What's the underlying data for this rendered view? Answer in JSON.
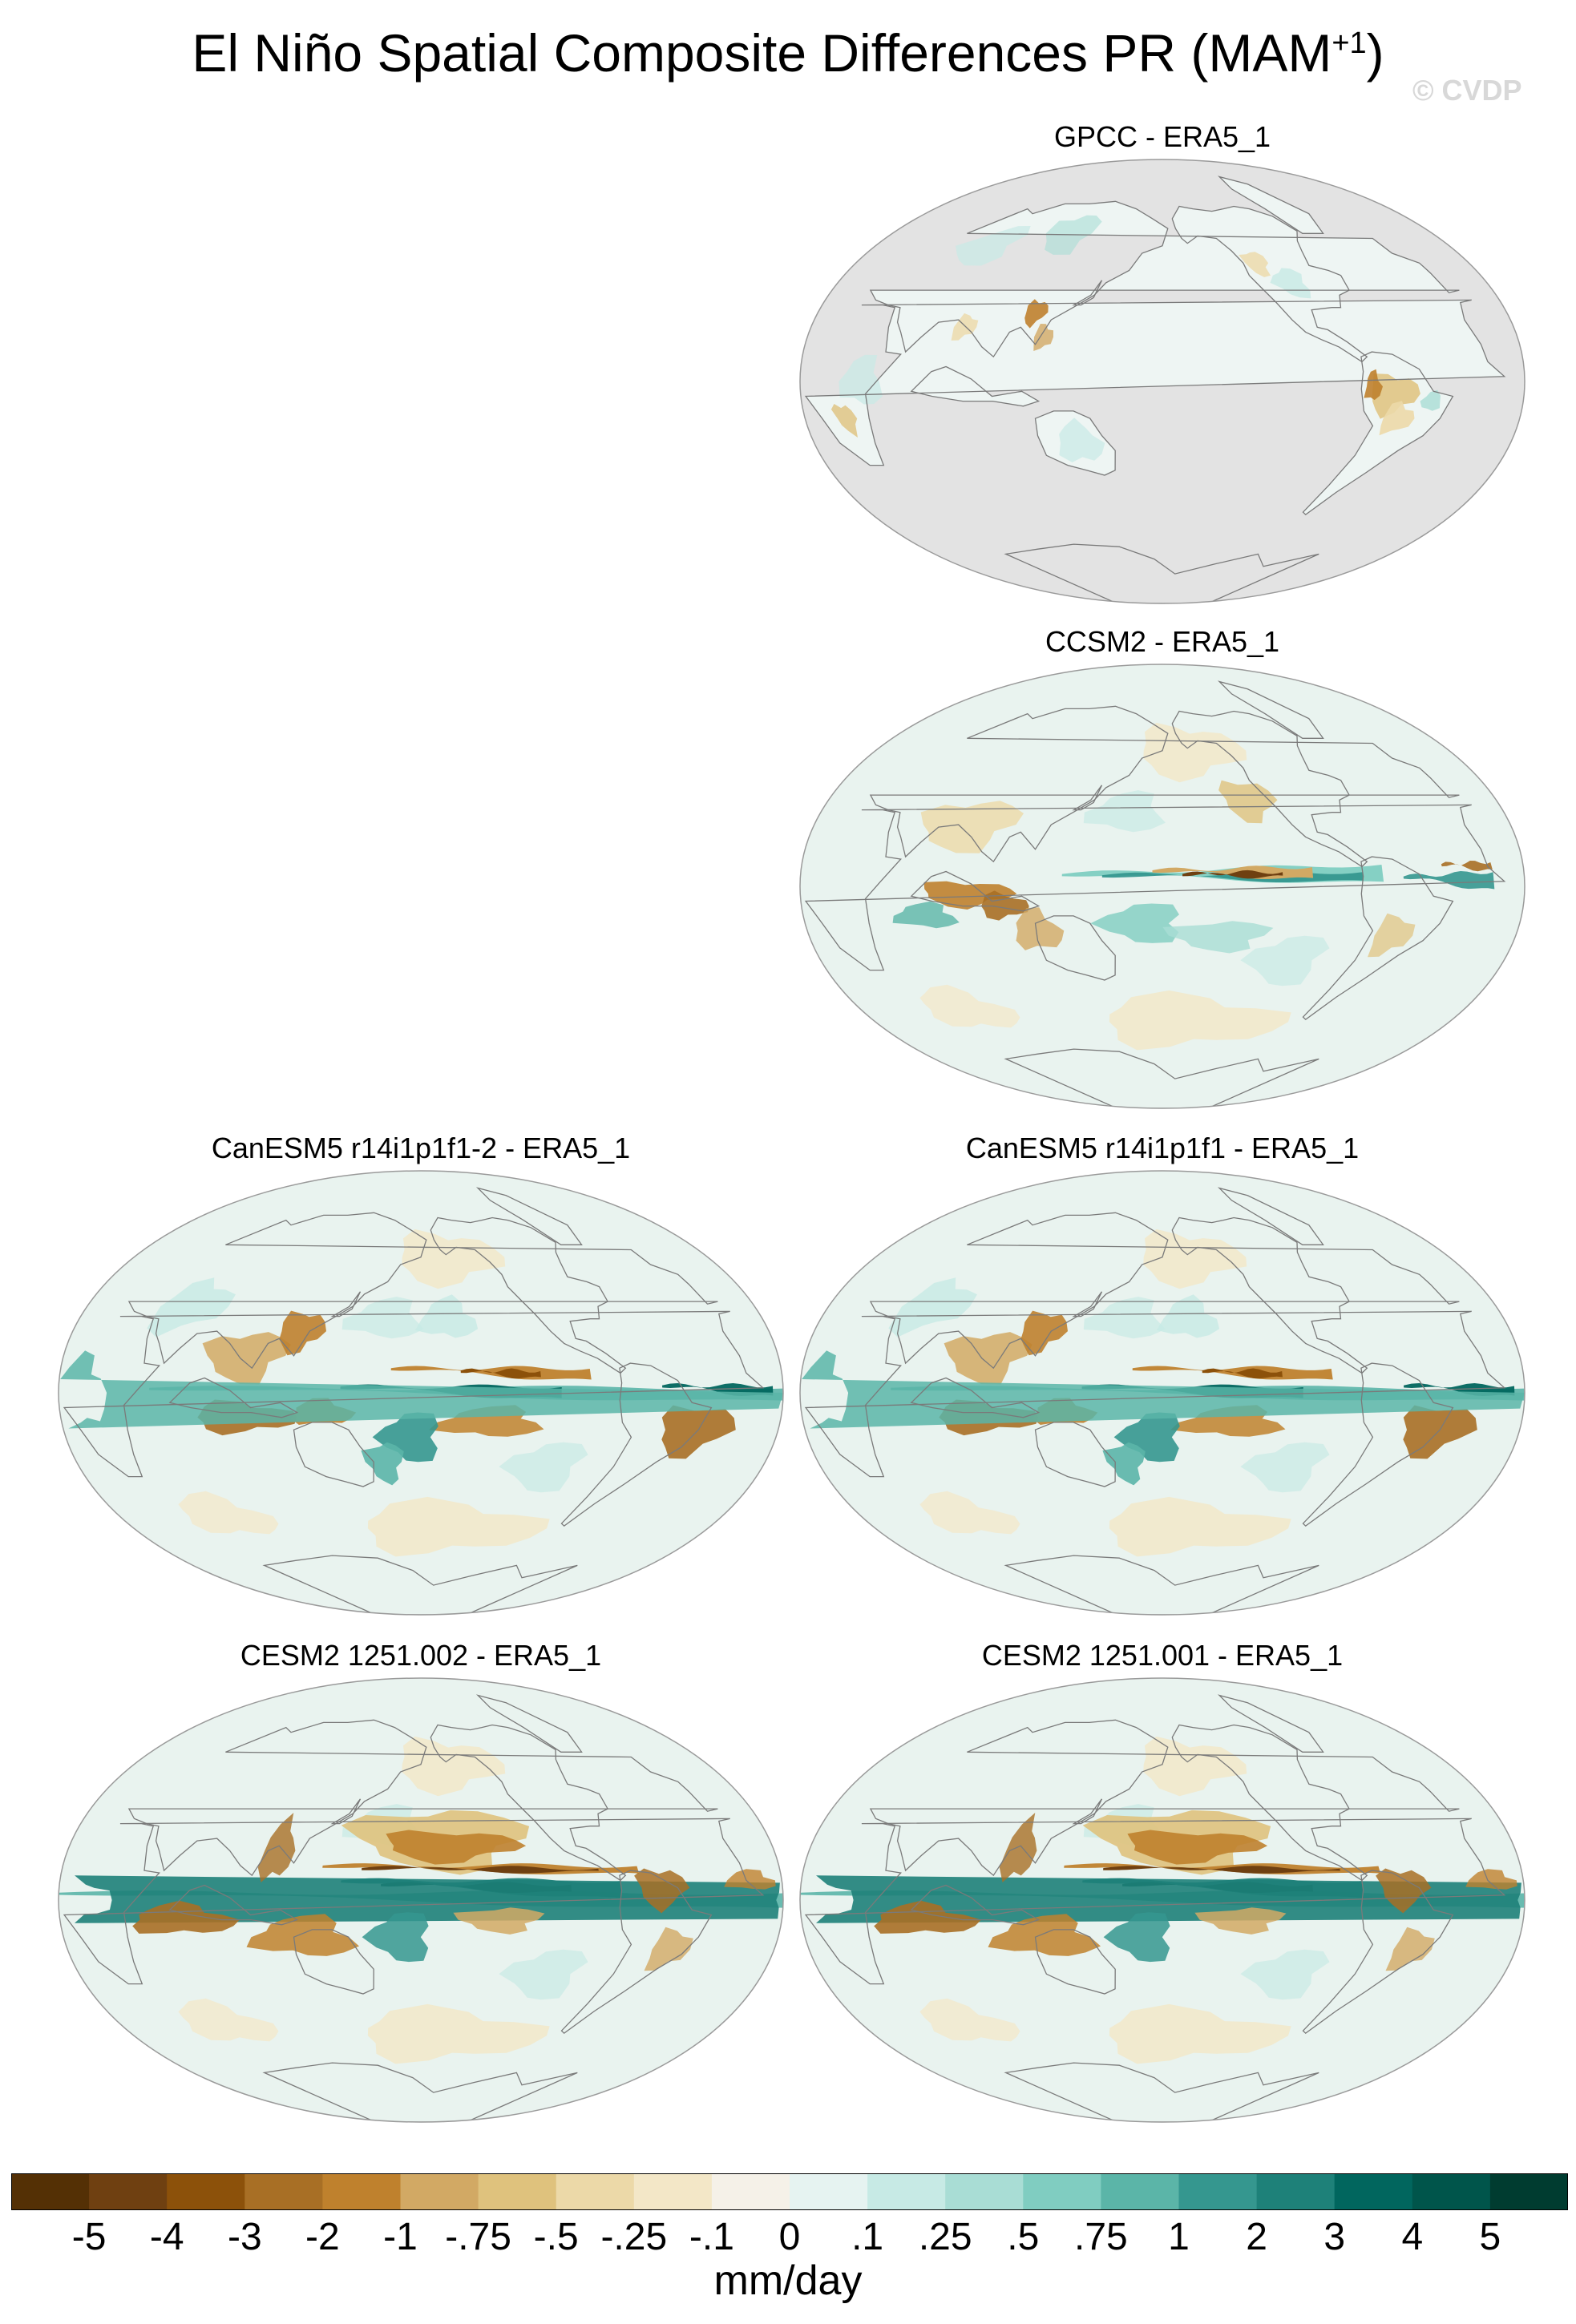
{
  "title_main": "El Niño Spatial Composite Differences PR (MAM",
  "title_sup": "+1",
  "title_close": ")",
  "watermark": "© CVDP",
  "panels": [
    {
      "label": "GPCC - ERA5_1",
      "style": "land-only"
    },
    {
      "label": "CCSM2 - ERA5_1",
      "style": "ccsm2"
    },
    {
      "label": "CanESM5 r14i1p1f1-2 - ERA5_1",
      "style": "canesm"
    },
    {
      "label": "CanESM5 r14i1p1f1 - ERA5_1",
      "style": "canesm"
    },
    {
      "label": "CESM2 1251.002 - ERA5_1",
      "style": "cesm"
    },
    {
      "label": "CESM2 1251.001 - ERA5_1",
      "style": "cesm"
    }
  ],
  "colorbar": {
    "colors": [
      "#543005",
      "#6f4011",
      "#8c510a",
      "#a86f25",
      "#bf812d",
      "#d2a964",
      "#dfc27d",
      "#ecd9a8",
      "#f3e7c7",
      "#f5f1e8",
      "#e6f3f1",
      "#c7eae5",
      "#a9ddd5",
      "#80cdc1",
      "#5bb5a8",
      "#35978f",
      "#1e8179",
      "#01665e",
      "#00554b",
      "#003c30"
    ],
    "labels": [
      "-5",
      "-4",
      "-3",
      "-2",
      "-1",
      "-.75",
      "-.5",
      "-.25",
      "-.1",
      "0",
      ".1",
      ".25",
      ".5",
      ".75",
      "1",
      "2",
      "3",
      "4",
      "5"
    ],
    "units": "mm/day"
  }
}
